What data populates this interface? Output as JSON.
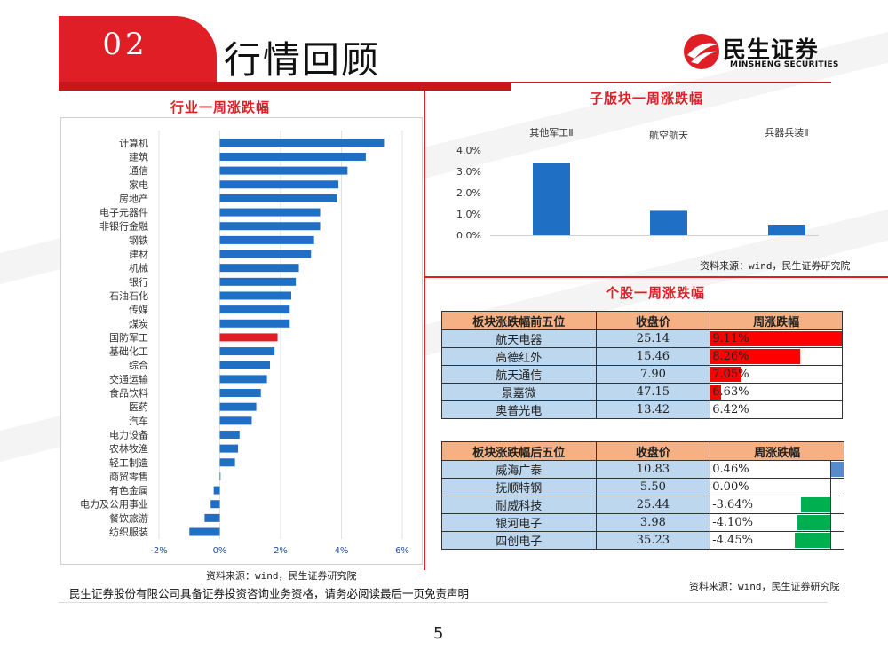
{
  "header": {
    "section_number": "02",
    "title": "行情回顾"
  },
  "brand": {
    "name_cn": "民生证券",
    "name_en": "MINSHENG SECURITIES",
    "color": "#e01e26"
  },
  "left_panel": {
    "title": "行业一周涨跌幅",
    "source": "资料来源：wind，民生证券研究院"
  },
  "right_top": {
    "title": "子版块一周涨跌幅",
    "source": "资料来源：wind，民生证券研究院"
  },
  "right_bottom": {
    "title": "个股一周涨跌幅",
    "source": "资料来源：wind，民生证券研究院"
  },
  "chart_data": [
    {
      "type": "bar",
      "orientation": "horizontal",
      "title": "行业一周涨跌幅",
      "categories": [
        "计算机",
        "建筑",
        "通信",
        "家电",
        "房地产",
        "电子元器件",
        "非银行金融",
        "钢铁",
        "建材",
        "机械",
        "银行",
        "石油石化",
        "传媒",
        "煤炭",
        "国防军工",
        "基础化工",
        "综合",
        "交通运输",
        "食品饮料",
        "医药",
        "汽车",
        "电力设备",
        "农林牧渔",
        "轻工制造",
        "商贸零售",
        "有色金属",
        "电力及公用事业",
        "餐饮旅游",
        "纺织服装"
      ],
      "values": [
        5.4,
        4.8,
        4.2,
        3.9,
        3.85,
        3.3,
        3.3,
        3.1,
        3.0,
        2.6,
        2.5,
        2.35,
        2.3,
        2.3,
        1.9,
        1.8,
        1.65,
        1.55,
        1.35,
        1.2,
        1.05,
        0.65,
        0.6,
        0.5,
        0.0,
        -0.2,
        -0.3,
        -0.5,
        -1.0
      ],
      "highlight": "国防军工",
      "xlim": [
        -2,
        6
      ],
      "xticks": [
        "-2%",
        "0%",
        "2%",
        "4%",
        "6%"
      ],
      "colors": {
        "default": "#1f6fc5",
        "highlight": "#e01e26"
      }
    },
    {
      "type": "bar",
      "title": "子版块一周涨跌幅",
      "categories": [
        "其他军工Ⅱ",
        "航空航天",
        "兵器兵装Ⅱ"
      ],
      "values": [
        3.4,
        1.15,
        0.5
      ],
      "ylim": [
        0,
        4
      ],
      "yticks": [
        "0.0%",
        "1.0%",
        "2.0%",
        "3.0%",
        "4.0%"
      ],
      "color": "#1f6fc5"
    }
  ],
  "top_table": {
    "headers": [
      "板块涨跌幅前五位",
      "收盘价",
      "周涨跌幅"
    ],
    "bar_color": "#ff0000",
    "rows": [
      {
        "name": "航天电器",
        "close": "25.14",
        "change": "9.11%",
        "value": 9.11
      },
      {
        "name": "高德红外",
        "close": "15.46",
        "change": "8.26%",
        "value": 8.26
      },
      {
        "name": "航天通信",
        "close": "7.90",
        "change": "7.05%",
        "value": 7.05
      },
      {
        "name": "景嘉微",
        "close": "47.15",
        "change": "6.63%",
        "value": 6.63
      },
      {
        "name": "奥普光电",
        "close": "13.42",
        "change": "6.42%",
        "value": 6.42
      }
    ]
  },
  "bottom_table": {
    "headers": [
      "板块涨跌幅后五位",
      "收盘价",
      "周涨跌幅"
    ],
    "neg_color": "#00b050",
    "pos_color": "#5b8ac9",
    "rows": [
      {
        "name": "威海广泰",
        "close": "10.83",
        "change": "0.46%",
        "value": 0.46
      },
      {
        "name": "抚顺特钢",
        "close": "5.50",
        "change": "0.00%",
        "value": 0.0
      },
      {
        "name": "耐威科技",
        "close": "25.44",
        "change": "-3.64%",
        "value": -3.64
      },
      {
        "name": "银河电子",
        "close": "3.98",
        "change": "-4.10%",
        "value": -4.1
      },
      {
        "name": "四创电子",
        "close": "35.23",
        "change": "-4.45%",
        "value": -4.45
      }
    ]
  },
  "footer": {
    "disclaimer": "民生证券股份有限公司具备证券投资咨询业务资格，请务必阅读最后一页免责声明",
    "page": "5"
  }
}
